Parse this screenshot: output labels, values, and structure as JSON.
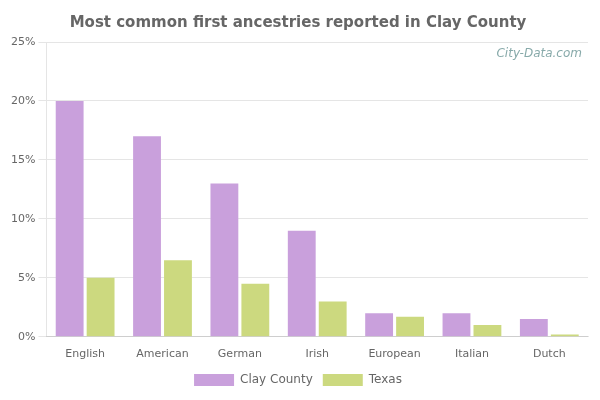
{
  "chart_data": {
    "type": "bar",
    "title": "Most common first ancestries reported in Clay County",
    "categories": [
      "English",
      "American",
      "German",
      "Irish",
      "European",
      "Italian",
      "Dutch"
    ],
    "series": [
      {
        "name": "Clay County",
        "color": "#c9a0dc",
        "values": [
          20.0,
          17.0,
          13.0,
          9.0,
          2.0,
          2.0,
          1.5
        ]
      },
      {
        "name": "Texas",
        "color": "#ccd97f",
        "values": [
          5.0,
          6.5,
          4.5,
          3.0,
          1.7,
          1.0,
          0.2
        ]
      }
    ],
    "ylim": [
      0,
      25
    ],
    "yticks": [
      {
        "value": 0,
        "label": "0%"
      },
      {
        "value": 5,
        "label": "5%"
      },
      {
        "value": 10,
        "label": "10%"
      },
      {
        "value": 15,
        "label": "15%"
      },
      {
        "value": 20,
        "label": "20%"
      },
      {
        "value": 25,
        "label": "25%"
      }
    ],
    "grid": true,
    "legend": "bottom",
    "annotations": [
      "City-Data.com"
    ]
  }
}
